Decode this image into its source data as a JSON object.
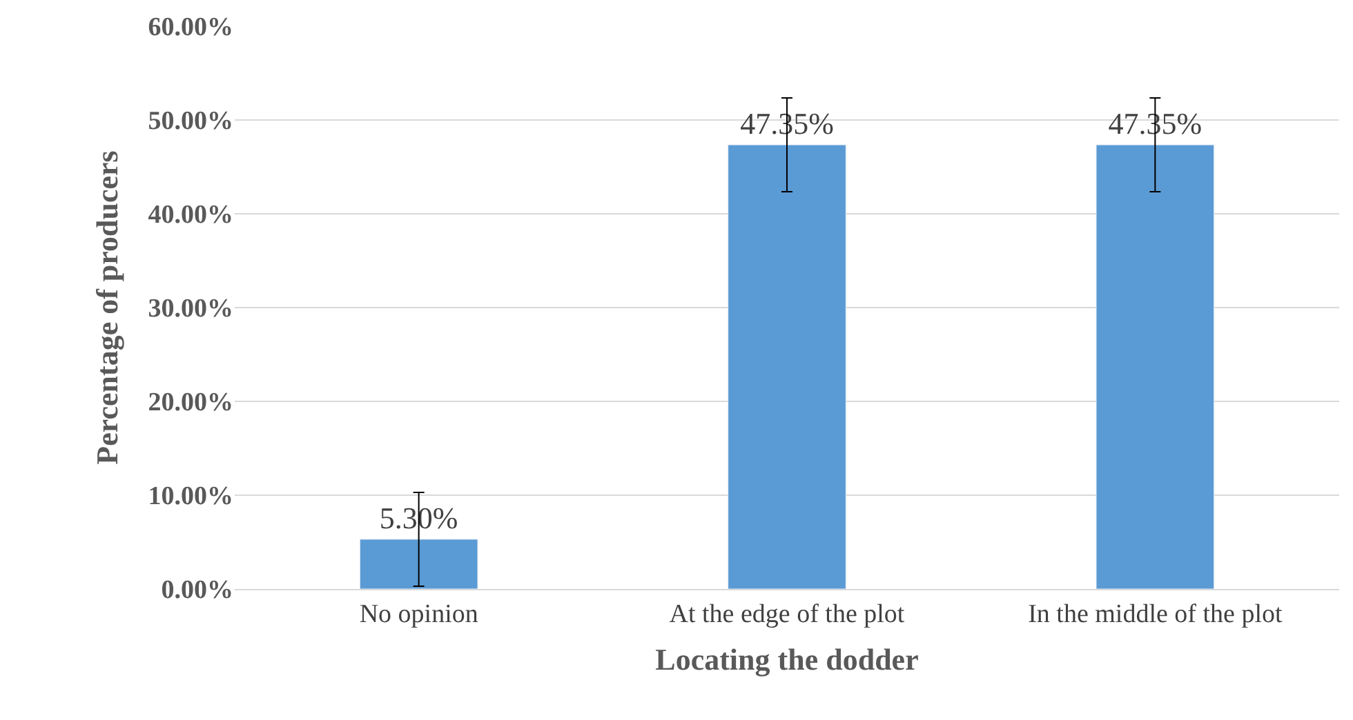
{
  "chart_data": {
    "type": "bar",
    "xlabel": "Locating the dodder",
    "ylabel": "Percentage of producers",
    "categories": [
      "No opinion",
      "At the edge of the plot",
      "In the middle of the plot"
    ],
    "values": [
      5.3,
      47.35,
      47.35
    ],
    "color": "#5b9bd5",
    "errors": [
      5,
      5,
      5
    ],
    "value_labels": [
      "5.30%",
      "47.35%",
      "47.35%"
    ],
    "ylim": [
      0,
      60
    ],
    "yticks": [
      {
        "value": 0,
        "label": "0.00%"
      },
      {
        "value": 10,
        "label": "10.00%"
      },
      {
        "value": 20,
        "label": "20.00%"
      },
      {
        "value": 30,
        "label": "30.00%"
      },
      {
        "value": 40,
        "label": "40.00%"
      },
      {
        "value": 50,
        "label": "50.00%"
      },
      {
        "value": 60,
        "label": "60.00%"
      }
    ],
    "grid": "y",
    "legend": false
  }
}
